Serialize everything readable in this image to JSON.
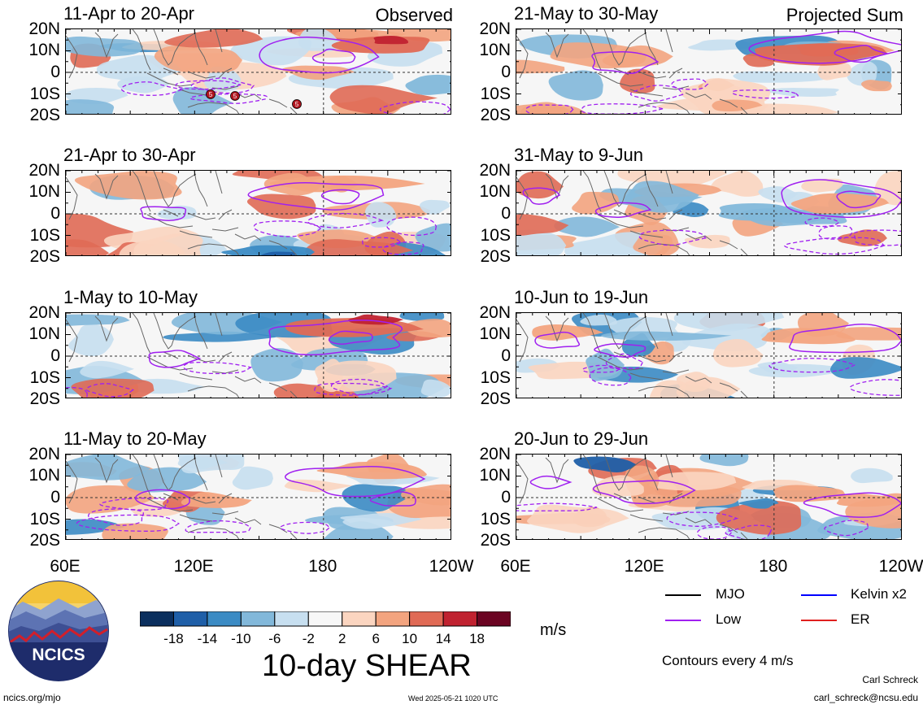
{
  "panels": [
    {
      "title": "11-Apr to 20-Apr",
      "tag": "Observed"
    },
    {
      "title": "21-Apr to 30-Apr",
      "tag": ""
    },
    {
      "title": "1-May to 10-May",
      "tag": ""
    },
    {
      "title": "11-May to 20-May",
      "tag": ""
    },
    {
      "title": "21-May to 30-May",
      "tag": "Projected Sum"
    },
    {
      "title": "31-May to 9-Jun",
      "tag": ""
    },
    {
      "title": "10-Jun to 19-Jun",
      "tag": ""
    },
    {
      "title": "20-Jun to 29-Jun",
      "tag": ""
    }
  ],
  "lat_labels": [
    "20N",
    "10N",
    "0",
    "10S",
    "20S"
  ],
  "lon_labels": [
    "60E",
    "120E",
    "180",
    "120W"
  ],
  "storm_markers": [
    "5",
    "5",
    "5"
  ],
  "colorbar": {
    "colors": [
      "#0b2f5e",
      "#1f5fa8",
      "#3b8bc4",
      "#82b8da",
      "#c7dff0",
      "#f7f7f7",
      "#fbd5c0",
      "#f3a47f",
      "#e06a55",
      "#c02230",
      "#6b0422"
    ],
    "labels": [
      "-18",
      "-14",
      "-10",
      "-6",
      "-2",
      "2",
      "6",
      "10",
      "14",
      "18"
    ],
    "unit": "m/s"
  },
  "title": "10-day SHEAR",
  "legend": [
    {
      "label": "MJO",
      "color": "#000000"
    },
    {
      "label": "Kelvin x2",
      "color": "#0000ff"
    },
    {
      "label": "Low",
      "color": "#a020f0"
    },
    {
      "label": "ER",
      "color": "#e0201e"
    }
  ],
  "contours_note": "Contours every 4 m/s",
  "logo_text": "NCICS",
  "footer": {
    "url": "ncics.org/mjo",
    "timestamp": "Wed 2025-05-21 1020 UTC",
    "author": "Carl Schreck",
    "email": "carl_schreck@ncsu.edu"
  }
}
